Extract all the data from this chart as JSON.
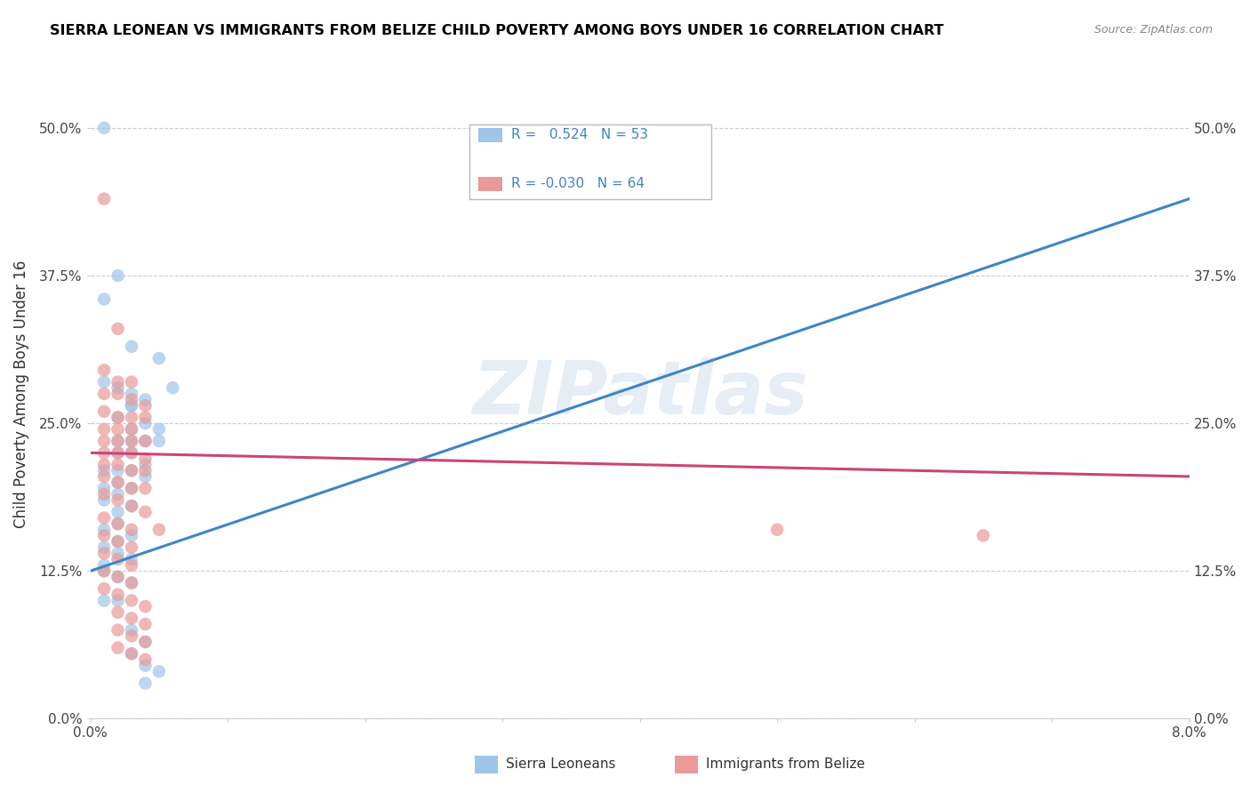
{
  "title": "SIERRA LEONEAN VS IMMIGRANTS FROM BELIZE CHILD POVERTY AMONG BOYS UNDER 16 CORRELATION CHART",
  "source": "Source: ZipAtlas.com",
  "ylabel": "Child Poverty Among Boys Under 16",
  "xlim": [
    0.0,
    0.08
  ],
  "ylim": [
    0.0,
    0.55
  ],
  "yticks": [
    0.0,
    0.125,
    0.25,
    0.375,
    0.5
  ],
  "ytick_labels": [
    "0.0%",
    "12.5%",
    "25.0%",
    "37.5%",
    "50.0%"
  ],
  "xticks": [
    0.0,
    0.01,
    0.02,
    0.03,
    0.04,
    0.05,
    0.06,
    0.07,
    0.08
  ],
  "xtick_labels": [
    "0.0%",
    "",
    "",
    "",
    "",
    "",
    "",
    "",
    "8.0%"
  ],
  "r1": 0.524,
  "n1": 53,
  "r2": -0.03,
  "n2": 64,
  "blue_color": "#9fc5e8",
  "pink_color": "#ea9999",
  "blue_line_color": "#3d85c8",
  "pink_line_color": "#cc4477",
  "watermark": "ZIPatlas",
  "blue_line": [
    [
      0.0,
      0.125
    ],
    [
      0.08,
      0.44
    ]
  ],
  "pink_line": [
    [
      0.0,
      0.225
    ],
    [
      0.08,
      0.205
    ]
  ],
  "sierra_leonean_points": [
    [
      0.001,
      0.5
    ],
    [
      0.002,
      0.375
    ],
    [
      0.001,
      0.355
    ],
    [
      0.003,
      0.315
    ],
    [
      0.005,
      0.305
    ],
    [
      0.003,
      0.275
    ],
    [
      0.001,
      0.285
    ],
    [
      0.002,
      0.28
    ],
    [
      0.006,
      0.28
    ],
    [
      0.003,
      0.265
    ],
    [
      0.003,
      0.265
    ],
    [
      0.004,
      0.27
    ],
    [
      0.002,
      0.255
    ],
    [
      0.004,
      0.25
    ],
    [
      0.003,
      0.245
    ],
    [
      0.005,
      0.245
    ],
    [
      0.003,
      0.235
    ],
    [
      0.002,
      0.235
    ],
    [
      0.004,
      0.235
    ],
    [
      0.005,
      0.235
    ],
    [
      0.002,
      0.225
    ],
    [
      0.003,
      0.225
    ],
    [
      0.004,
      0.215
    ],
    [
      0.001,
      0.21
    ],
    [
      0.002,
      0.21
    ],
    [
      0.003,
      0.21
    ],
    [
      0.004,
      0.205
    ],
    [
      0.002,
      0.2
    ],
    [
      0.001,
      0.195
    ],
    [
      0.003,
      0.195
    ],
    [
      0.002,
      0.19
    ],
    [
      0.001,
      0.185
    ],
    [
      0.003,
      0.18
    ],
    [
      0.002,
      0.175
    ],
    [
      0.002,
      0.165
    ],
    [
      0.001,
      0.16
    ],
    [
      0.003,
      0.155
    ],
    [
      0.002,
      0.15
    ],
    [
      0.001,
      0.145
    ],
    [
      0.002,
      0.14
    ],
    [
      0.003,
      0.135
    ],
    [
      0.001,
      0.13
    ],
    [
      0.001,
      0.125
    ],
    [
      0.002,
      0.12
    ],
    [
      0.003,
      0.115
    ],
    [
      0.001,
      0.1
    ],
    [
      0.002,
      0.1
    ],
    [
      0.003,
      0.075
    ],
    [
      0.004,
      0.065
    ],
    [
      0.003,
      0.055
    ],
    [
      0.004,
      0.045
    ],
    [
      0.005,
      0.04
    ],
    [
      0.004,
      0.03
    ]
  ],
  "belize_points": [
    [
      0.001,
      0.44
    ],
    [
      0.002,
      0.33
    ],
    [
      0.001,
      0.295
    ],
    [
      0.002,
      0.285
    ],
    [
      0.003,
      0.285
    ],
    [
      0.001,
      0.275
    ],
    [
      0.002,
      0.275
    ],
    [
      0.003,
      0.27
    ],
    [
      0.004,
      0.265
    ],
    [
      0.001,
      0.26
    ],
    [
      0.002,
      0.255
    ],
    [
      0.003,
      0.255
    ],
    [
      0.004,
      0.255
    ],
    [
      0.001,
      0.245
    ],
    [
      0.002,
      0.245
    ],
    [
      0.003,
      0.245
    ],
    [
      0.001,
      0.235
    ],
    [
      0.002,
      0.235
    ],
    [
      0.003,
      0.235
    ],
    [
      0.004,
      0.235
    ],
    [
      0.001,
      0.225
    ],
    [
      0.002,
      0.225
    ],
    [
      0.003,
      0.225
    ],
    [
      0.004,
      0.22
    ],
    [
      0.001,
      0.215
    ],
    [
      0.002,
      0.215
    ],
    [
      0.003,
      0.21
    ],
    [
      0.004,
      0.21
    ],
    [
      0.001,
      0.205
    ],
    [
      0.002,
      0.2
    ],
    [
      0.003,
      0.195
    ],
    [
      0.004,
      0.195
    ],
    [
      0.001,
      0.19
    ],
    [
      0.002,
      0.185
    ],
    [
      0.003,
      0.18
    ],
    [
      0.004,
      0.175
    ],
    [
      0.001,
      0.17
    ],
    [
      0.002,
      0.165
    ],
    [
      0.003,
      0.16
    ],
    [
      0.001,
      0.155
    ],
    [
      0.002,
      0.15
    ],
    [
      0.003,
      0.145
    ],
    [
      0.001,
      0.14
    ],
    [
      0.002,
      0.135
    ],
    [
      0.003,
      0.13
    ],
    [
      0.001,
      0.125
    ],
    [
      0.002,
      0.12
    ],
    [
      0.003,
      0.115
    ],
    [
      0.001,
      0.11
    ],
    [
      0.002,
      0.105
    ],
    [
      0.003,
      0.1
    ],
    [
      0.004,
      0.095
    ],
    [
      0.002,
      0.09
    ],
    [
      0.003,
      0.085
    ],
    [
      0.004,
      0.08
    ],
    [
      0.002,
      0.075
    ],
    [
      0.003,
      0.07
    ],
    [
      0.004,
      0.065
    ],
    [
      0.002,
      0.06
    ],
    [
      0.003,
      0.055
    ],
    [
      0.004,
      0.05
    ],
    [
      0.005,
      0.16
    ],
    [
      0.05,
      0.16
    ],
    [
      0.065,
      0.155
    ]
  ]
}
